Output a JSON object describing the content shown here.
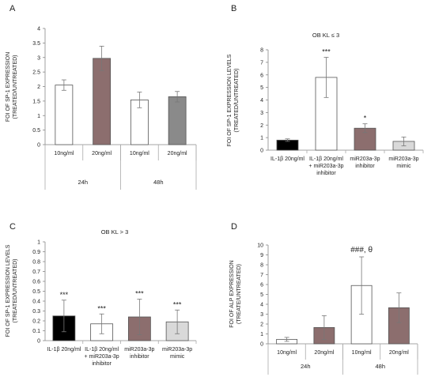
{
  "chart_data": [
    {
      "panel": "A",
      "type": "bar",
      "title": "",
      "ylabel": [
        "FOI OF SP-1 EXPRESSION",
        "(TREATED/UNTREATED)"
      ],
      "ylim": [
        0,
        4
      ],
      "yticks": [
        "0",
        "0.5",
        "1",
        "1.5",
        "2",
        "2.5",
        "3",
        "3.5",
        "4"
      ],
      "categories": [
        "10ng/ml",
        "20ng/ml",
        "10ng/ml",
        "20ng/ml"
      ],
      "groups": [
        {
          "label": "24h",
          "span": [
            0,
            1
          ]
        },
        {
          "label": "48h",
          "span": [
            2,
            3
          ]
        }
      ],
      "values": [
        2.05,
        2.97,
        1.54,
        1.65
      ],
      "errors": [
        0.18,
        0.42,
        0.27,
        0.18
      ],
      "colors": [
        "#ffffff",
        "#8c6e6e",
        "#ffffff",
        "#8a8a8a"
      ],
      "annotations": [
        "",
        "",
        "",
        ""
      ]
    },
    {
      "panel": "B",
      "type": "bar",
      "title": "OB KL ≤ 3",
      "ylabel": [
        "FOI OF SP-1 EXPRESSION LEVELS",
        "(TREATED/UNTREATED)"
      ],
      "ylim": [
        0,
        8
      ],
      "yticks": [
        "0",
        "1",
        "2",
        "3",
        "4",
        "5",
        "6",
        "7",
        "8"
      ],
      "categories": [
        [
          "IL-1β 20ng/ml"
        ],
        [
          "IL-1β 20ng/ml",
          "+ miR203a-3p",
          "inhibitor"
        ],
        [
          "miR203a-3p",
          "inhibitor"
        ],
        [
          "miR203a-3p",
          "mimic"
        ]
      ],
      "groups": [],
      "values": [
        0.8,
        5.8,
        1.75,
        0.7
      ],
      "errors": [
        0.1,
        1.6,
        0.35,
        0.35
      ],
      "colors": [
        "#000000",
        "#ffffff",
        "#8c6e6e",
        "#d9d9d9"
      ],
      "annotations": [
        "",
        "***",
        "*",
        ""
      ]
    },
    {
      "panel": "C",
      "type": "bar",
      "title": "OB KL > 3",
      "ylabel": [
        "FOI OF SP-1 EXPRESSION LEVELS",
        "(TREATED/UNTREATED)"
      ],
      "ylim": [
        0,
        1
      ],
      "yticks": [
        "0",
        "0.1",
        "0.2",
        "0.3",
        "0.4",
        "0.5",
        "0.6",
        "0.7",
        "0.8",
        "0.9",
        "1"
      ],
      "categories": [
        [
          "IL-1β 20ng/ml"
        ],
        [
          "IL-1β 20ng/ml",
          "+ miR203a-3p",
          "inhibitor"
        ],
        [
          "miR203a-3p",
          "inhibitor"
        ],
        [
          "miR203a-3p",
          "mimic"
        ]
      ],
      "groups": [],
      "values": [
        0.25,
        0.17,
        0.24,
        0.19
      ],
      "errors": [
        0.16,
        0.1,
        0.18,
        0.12
      ],
      "colors": [
        "#000000",
        "#ffffff",
        "#8c6e6e",
        "#d9d9d9"
      ],
      "annotations": [
        "***",
        "***",
        "***",
        "***"
      ]
    },
    {
      "panel": "D",
      "type": "bar",
      "title": "",
      "ylabel": [
        "FOI OF ALP EXPRESSION",
        "(TREATE/UNTREATED)"
      ],
      "ylim": [
        0,
        10
      ],
      "yticks": [
        "0",
        "1",
        "2",
        "3",
        "4",
        "5",
        "6",
        "7",
        "8",
        "9",
        "10"
      ],
      "categories": [
        "10ng/ml",
        "20ng/ml",
        "10ng/ml",
        "20ng/ml"
      ],
      "groups": [
        {
          "label": "24h",
          "span": [
            0,
            1
          ]
        },
        {
          "label": "48h",
          "span": [
            2,
            3
          ]
        }
      ],
      "values": [
        0.45,
        1.65,
        5.9,
        3.65
      ],
      "errors": [
        0.2,
        1.2,
        2.9,
        1.5
      ],
      "colors": [
        "#ffffff",
        "#8c6e6e",
        "#ffffff",
        "#8c6e6e"
      ],
      "annotations": [
        "",
        "",
        "###, θ",
        ""
      ]
    }
  ]
}
